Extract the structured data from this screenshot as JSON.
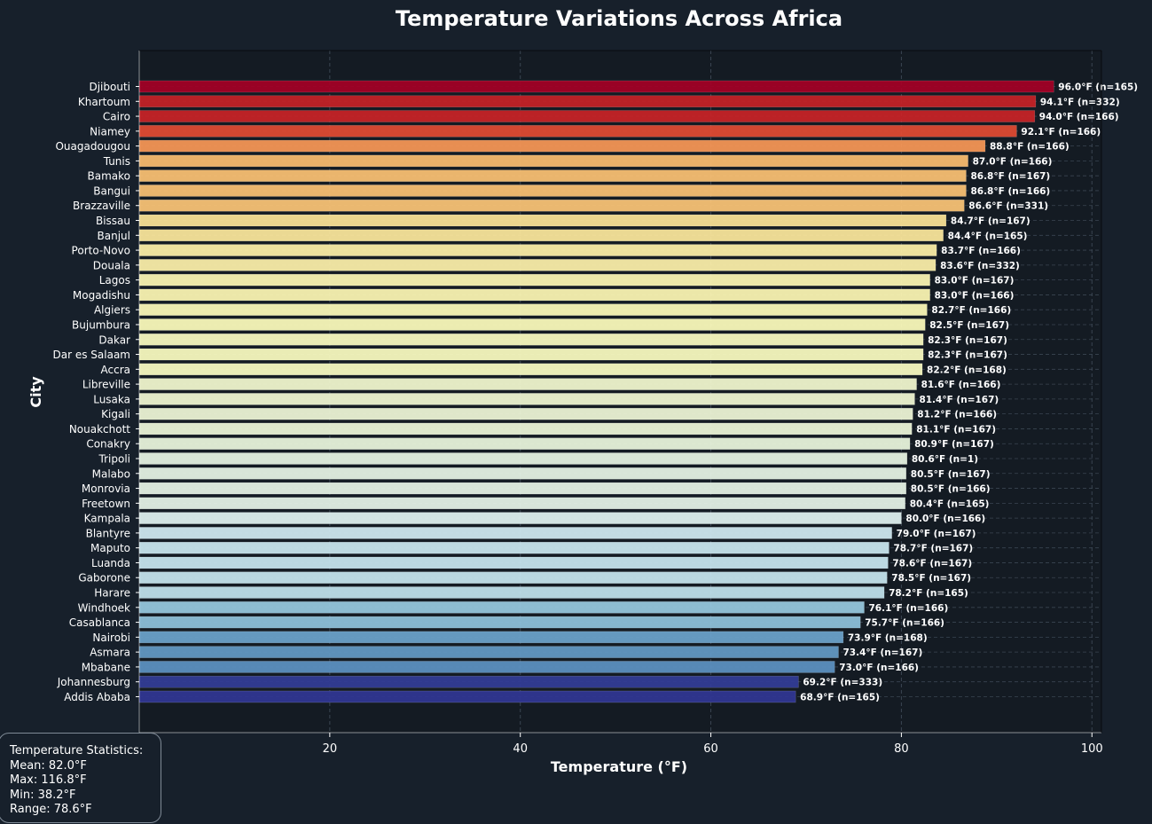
{
  "chart_data": {
    "type": "bar",
    "orientation": "horizontal",
    "title": "Temperature Variations Across Africa",
    "xlabel": "Temperature (°F)",
    "ylabel": "City",
    "xlim": [
      0,
      101
    ],
    "xticks": [
      "20",
      "40",
      "60",
      "80",
      "100"
    ],
    "xtick_values": [
      20,
      40,
      60,
      80,
      100
    ],
    "grid": true,
    "categories": [
      "Djibouti",
      "Khartoum",
      "Cairo",
      "Niamey",
      "Ouagadougou",
      "Tunis",
      "Bamako",
      "Bangui",
      "Brazzaville",
      "Bissau",
      "Banjul",
      "Porto-Novo",
      "Douala",
      "Lagos",
      "Mogadishu",
      "Algiers",
      "Bujumbura",
      "Dakar",
      "Dar es Salaam",
      "Accra",
      "Libreville",
      "Lusaka",
      "Kigali",
      "Nouakchott",
      "Conakry",
      "Tripoli",
      "Malabo",
      "Monrovia",
      "Freetown",
      "Kampala",
      "Blantyre",
      "Maputo",
      "Luanda",
      "Gaborone",
      "Harare",
      "Windhoek",
      "Casablanca",
      "Nairobi",
      "Asmara",
      "Mbabane",
      "Johannesburg",
      "Addis Ababa"
    ],
    "values": [
      96.0,
      94.1,
      94.0,
      92.1,
      88.8,
      87.0,
      86.8,
      86.8,
      86.6,
      84.7,
      84.4,
      83.7,
      83.6,
      83.0,
      83.0,
      82.7,
      82.5,
      82.3,
      82.3,
      82.2,
      81.6,
      81.4,
      81.2,
      81.1,
      80.9,
      80.6,
      80.5,
      80.5,
      80.4,
      80.0,
      79.0,
      78.7,
      78.6,
      78.5,
      78.2,
      76.1,
      75.7,
      73.9,
      73.4,
      73.0,
      69.2,
      68.9
    ],
    "data_labels": [
      "96.0°F (n=165)",
      "94.1°F (n=332)",
      "94.0°F (n=166)",
      "92.1°F (n=166)",
      "88.8°F (n=166)",
      "87.0°F (n=166)",
      "86.8°F (n=167)",
      "86.8°F (n=166)",
      "86.6°F (n=331)",
      "84.7°F (n=167)",
      "84.4°F (n=165)",
      "83.7°F (n=166)",
      "83.6°F (n=332)",
      "83.0°F (n=167)",
      "83.0°F (n=166)",
      "82.7°F (n=166)",
      "82.5°F (n=167)",
      "82.3°F (n=167)",
      "82.3°F (n=167)",
      "82.2°F (n=168)",
      "81.6°F (n=166)",
      "81.4°F (n=167)",
      "81.2°F (n=166)",
      "81.1°F (n=167)",
      "80.9°F (n=167)",
      "80.6°F (n=1)",
      "80.5°F (n=167)",
      "80.5°F (n=166)",
      "80.4°F (n=165)",
      "80.0°F (n=166)",
      "79.0°F (n=167)",
      "78.7°F (n=167)",
      "78.6°F (n=167)",
      "78.5°F (n=167)",
      "78.2°F (n=165)",
      "76.1°F (n=166)",
      "75.7°F (n=166)",
      "73.9°F (n=168)",
      "73.4°F (n=167)",
      "73.0°F (n=166)",
      "69.2°F (n=333)",
      "68.9°F (n=165)"
    ],
    "colormap": "RdYlBu_r",
    "colors": {
      "background": "#17202b",
      "axes_background": "#141b23",
      "grid": "#3a4552",
      "text": "#ffffff"
    }
  },
  "stats": {
    "heading": "Temperature Statistics:",
    "mean": "Mean: 82.0°F",
    "max": "Max: 116.8°F",
    "min": "Min: 38.2°F",
    "range": "Range: 78.6°F"
  }
}
